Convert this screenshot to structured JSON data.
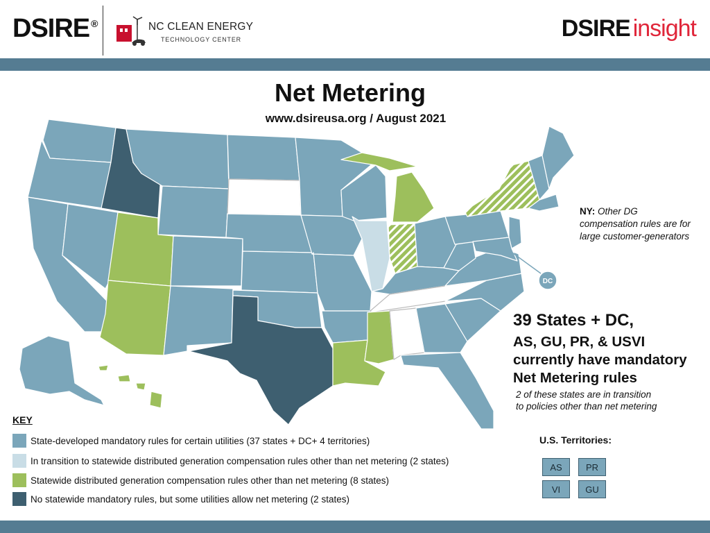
{
  "header": {
    "dsire_logo": "DSIRE",
    "registered_mark": "®",
    "nc_line1": "NC CLEAN ENERGY",
    "nc_line2": "TECHNOLOGY CENTER",
    "insight_part1": "DSIRE",
    "insight_part2": "insight"
  },
  "title": "Net Metering",
  "subtitle": "www.dsireusa.org / August 2021",
  "map": {
    "dc_label": "DC",
    "colors": {
      "mandatory": "#7ba6ba",
      "transition": "#c9dde6",
      "other_dg": "#9dbf5c",
      "no_statewide": "#3e5f70",
      "none": "#ffffff"
    }
  },
  "ny_note": {
    "label": "NY:",
    "text_line1": "Other DG",
    "text_line2": "compensation rules are for",
    "text_line3": "large customer-generators"
  },
  "summary": {
    "line1": "39 States + DC,",
    "line2": "AS, GU, PR, & USVI",
    "line3": "currently have mandatory",
    "line4": "Net Metering rules",
    "note_line1": "2 of these states are in transition",
    "note_line2": "to policies other than net metering"
  },
  "key": {
    "title": "KEY",
    "items": [
      {
        "label": "State-developed mandatory rules for certain utilities (37 states + DC+ 4 territories)",
        "color": "#7ba6ba"
      },
      {
        "label": "In transition to statewide distributed generation compensation rules other than net metering (2 states)",
        "color": "#c9dde6"
      },
      {
        "label": "Statewide distributed generation compensation rules other than net metering (8 states)",
        "color": "#9dbf5c"
      },
      {
        "label": "No statewide mandatory rules, but some utilities allow net metering (2 states)",
        "color": "#3e5f70"
      }
    ]
  },
  "territories": {
    "title": "U.S. Territories:",
    "items": [
      "AS",
      "PR",
      "VI",
      "GU"
    ]
  }
}
